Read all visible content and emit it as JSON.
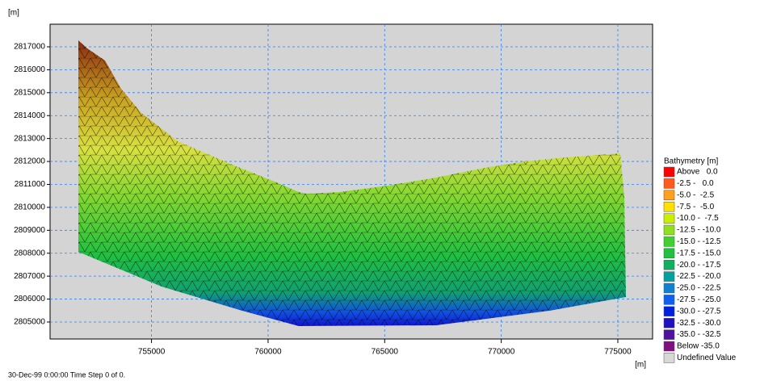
{
  "chart_data": {
    "type": "mesh",
    "y_unit": "[m]",
    "x_unit": "[m]",
    "xlim": [
      750650,
      776490
    ],
    "ylim": [
      2804260,
      2817985
    ],
    "xticks": [
      755000,
      760000,
      765000,
      770000,
      775000
    ],
    "yticks": [
      2805000,
      2806000,
      2807000,
      2808000,
      2809000,
      2810000,
      2811000,
      2812000,
      2813000,
      2814000,
      2815000,
      2816000,
      2817000
    ],
    "grid": true,
    "grid_color": "#3a7fd8",
    "plot_background": "#d4d4d4",
    "legend": {
      "title": "Bathymetry [m]",
      "position": "right",
      "items": [
        {
          "label": "Above   0.0",
          "color": "#ff0000"
        },
        {
          "label": "-2.5 -   0.0",
          "color": "#ff5a1e"
        },
        {
          "label": "-5.0 -  -2.5",
          "color": "#ffa01e"
        },
        {
          "label": "-7.5 -  -5.0",
          "color": "#ffe000"
        },
        {
          "label": "-10.0 -  -7.5",
          "color": "#c8f000"
        },
        {
          "label": "-12.5 - -10.0",
          "color": "#90e020"
        },
        {
          "label": "-15.0 - -12.5",
          "color": "#40d030"
        },
        {
          "label": "-17.5 - -15.0",
          "color": "#20c040"
        },
        {
          "label": "-20.0 - -17.5",
          "color": "#10b060"
        },
        {
          "label": "-22.5 - -20.0",
          "color": "#00a0a0"
        },
        {
          "label": "-25.0 - -22.5",
          "color": "#1080d0"
        },
        {
          "label": "-27.5 - -25.0",
          "color": "#1060f0"
        },
        {
          "label": "-30.0 - -27.5",
          "color": "#0020e0"
        },
        {
          "label": "-32.5 - -30.0",
          "color": "#2010c0"
        },
        {
          "label": "-35.0 - -32.5",
          "color": "#5010a0"
        },
        {
          "label": "Below -35.0",
          "color": "#801080"
        },
        {
          "label": "Undefined Value",
          "color": "#d8d8d8"
        }
      ]
    },
    "footer": "30-Dec-99 0:00:00  Time Step 0 of 0."
  }
}
